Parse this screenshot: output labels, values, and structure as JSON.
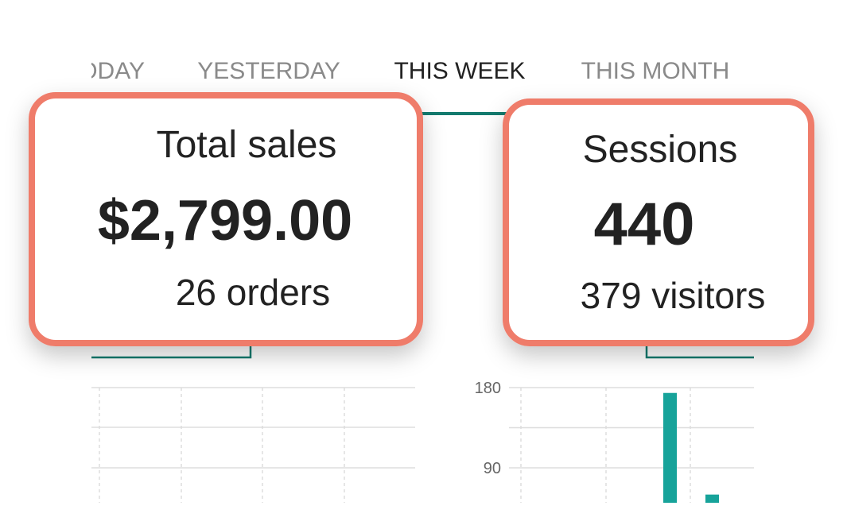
{
  "tabs": [
    "TODAY",
    "YESTERDAY",
    "THIS WEEK",
    "THIS MONTH"
  ],
  "active_tab": 2,
  "cards": [
    {
      "title": "Total sales",
      "value": "$2,799.00",
      "detail": "26 orders"
    },
    {
      "title": "Sessions",
      "value": "440",
      "detail": "379 visitors"
    }
  ],
  "sessions_chart": {
    "ylim": [
      0,
      180
    ],
    "yticks": [
      90,
      180
    ],
    "values": [
      174,
      60
    ],
    "color": "#17a39a"
  }
}
